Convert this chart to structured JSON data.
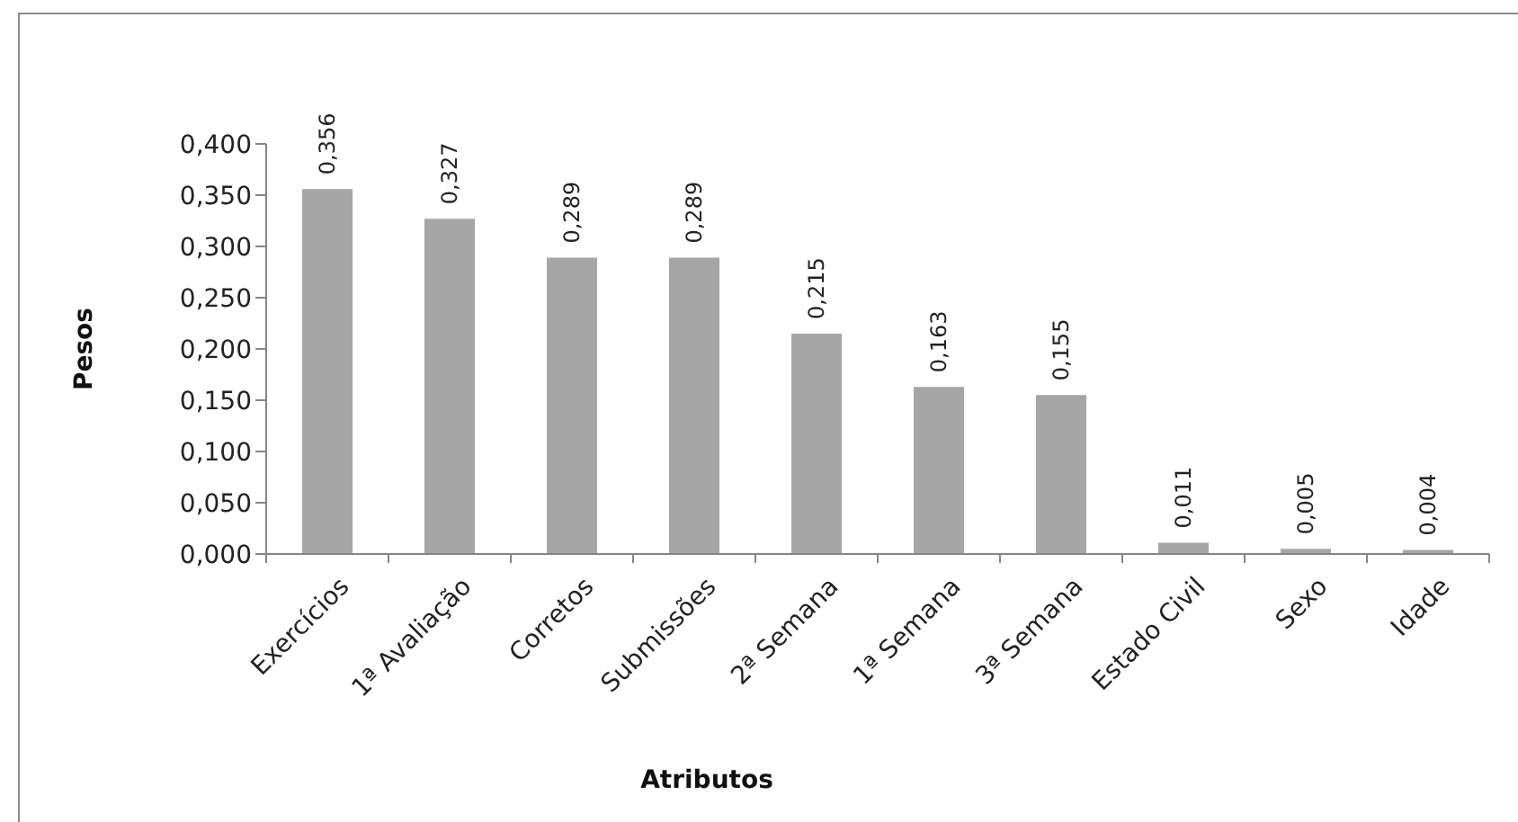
{
  "chart_data": {
    "type": "bar",
    "categories": [
      "Exercícios",
      "1ª Avaliação",
      "Corretos",
      "Submissões",
      "2ª Semana",
      "1ª Semana",
      "3ª Semana",
      "Estado Civil",
      "Sexo",
      "Idade"
    ],
    "values": [
      0.356,
      0.327,
      0.289,
      0.289,
      0.215,
      0.163,
      0.155,
      0.011,
      0.005,
      0.004
    ],
    "value_labels": [
      "0,356",
      "0,327",
      "0,289",
      "0,289",
      "0,215",
      "0,163",
      "0,155",
      "0,011",
      "0,005",
      "0,004"
    ],
    "color": "#a6a6a6",
    "xlabel": "Atributos",
    "ylabel": "Pesos",
    "ylim": [
      0,
      0.4
    ],
    "yticks": [
      {
        "value": 0,
        "label": "0,000"
      },
      {
        "value": 0.05,
        "label": "0,050"
      },
      {
        "value": 0.1,
        "label": "0,100"
      },
      {
        "value": 0.15,
        "label": "0,150"
      },
      {
        "value": 0.2,
        "label": "0,200"
      },
      {
        "value": 0.25,
        "label": "0,250"
      },
      {
        "value": 0.3,
        "label": "0,300"
      },
      {
        "value": 0.35,
        "label": "0,350"
      },
      {
        "value": 0.4,
        "label": "0,400"
      }
    ]
  }
}
